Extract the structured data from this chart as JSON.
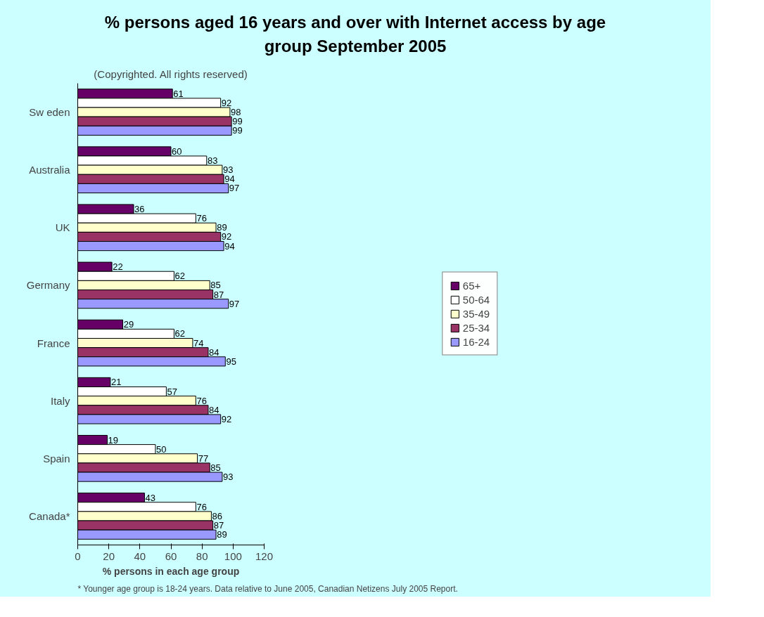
{
  "chart_data": {
    "type": "bar",
    "orientation": "horizontal",
    "title": "% persons aged 16 years and over with Internet access by age group September 2005",
    "subtitle": "(Copyrighted. All rights reserved)",
    "xlabel": "% persons in each age group",
    "categories": [
      "Sw eden",
      "Australia",
      "UK",
      "Germany",
      "France",
      "Italy",
      "Spain",
      "Canada*"
    ],
    "series": [
      {
        "name": "65+",
        "color": "#660066",
        "values": [
          61,
          60,
          36,
          22,
          29,
          21,
          19,
          43
        ]
      },
      {
        "name": "50-64",
        "color": "#ffffff",
        "values": [
          92,
          83,
          76,
          62,
          62,
          57,
          50,
          76
        ]
      },
      {
        "name": "35-49",
        "color": "#ffffcc",
        "values": [
          98,
          93,
          89,
          85,
          74,
          76,
          77,
          86
        ]
      },
      {
        "name": "25-34",
        "color": "#993366",
        "values": [
          99,
          94,
          92,
          87,
          84,
          84,
          85,
          87
        ]
      },
      {
        "name": "16-24",
        "color": "#9999ff",
        "values": [
          99,
          97,
          94,
          97,
          95,
          92,
          93,
          89
        ]
      }
    ],
    "xlim": [
      0,
      120
    ],
    "xticks": [
      0,
      20,
      40,
      60,
      80,
      100,
      120
    ],
    "grid": false,
    "legend": "right",
    "data_labels": true,
    "annotations": [
      "* Younger age group is 18-24 years.  Data relative to June 2005, Canadian Netizens July 2005 Report."
    ]
  }
}
